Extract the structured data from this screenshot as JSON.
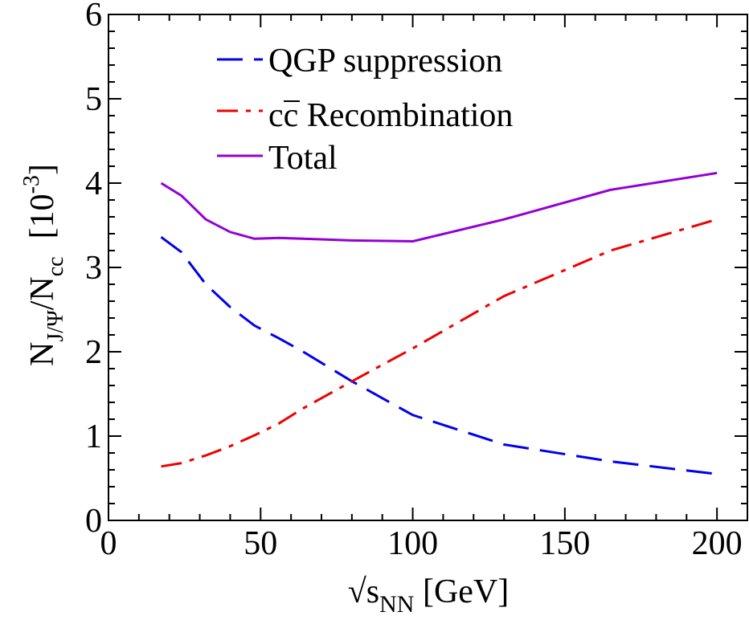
{
  "chart_data": {
    "type": "line",
    "title": "",
    "xlabel": {
      "prefix": "√s",
      "subscript": "NN",
      "suffix": " [GeV]"
    },
    "ylabel": {
      "n": "N",
      "sub_jpsi": "J/Ψ",
      "slash": "/N",
      "sub_cc": "cc",
      "unit_open": "[10",
      "unit_exp": "-3",
      "unit_close": "]"
    },
    "xlim": [
      0,
      210
    ],
    "ylim": [
      0,
      6
    ],
    "xticks": [
      0,
      50,
      100,
      150,
      200
    ],
    "yticks": [
      0,
      1,
      2,
      3,
      4,
      5,
      6
    ],
    "xtick_labels": [
      "0",
      "50",
      "100",
      "150",
      "200"
    ],
    "ytick_labels": [
      "0",
      "1",
      "2",
      "3",
      "4",
      "5",
      "6"
    ],
    "grid": false,
    "legend_position": "top-center",
    "series": [
      {
        "name": "QGP suppression",
        "legend_text": "QGP suppression",
        "color": "#0000ee",
        "dash": "longdash",
        "x": [
          17.3,
          24,
          32,
          40,
          48,
          56,
          64,
          80,
          100,
          130,
          165,
          200
        ],
        "y": [
          3.36,
          3.18,
          2.8,
          2.53,
          2.31,
          2.16,
          2.0,
          1.65,
          1.25,
          0.9,
          0.7,
          0.55
        ]
      },
      {
        "name": "cc Recombination",
        "legend_text": "cc",
        "legend_suffix": " Recombination",
        "color": "#ee0000",
        "dash": "dashdot",
        "x": [
          17.3,
          24,
          32,
          40,
          48,
          56,
          64,
          80,
          100,
          130,
          165,
          200
        ],
        "y": [
          0.64,
          0.68,
          0.77,
          0.88,
          1.01,
          1.15,
          1.33,
          1.65,
          2.04,
          2.66,
          3.2,
          3.57
        ]
      },
      {
        "name": "Total",
        "legend_text": "Total",
        "color": "#9400d3",
        "dash": "solid",
        "x": [
          17.3,
          24,
          32,
          40,
          48,
          56,
          64,
          80,
          100,
          130,
          165,
          200
        ],
        "y": [
          4.0,
          3.85,
          3.57,
          3.42,
          3.34,
          3.35,
          3.34,
          3.32,
          3.31,
          3.57,
          3.92,
          4.12
        ]
      }
    ]
  }
}
